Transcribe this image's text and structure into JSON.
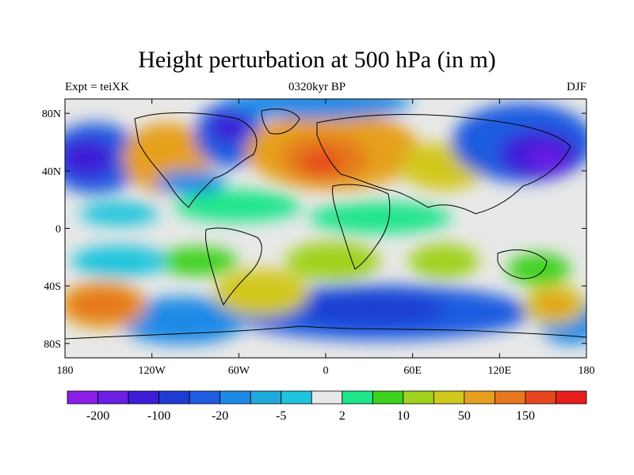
{
  "title": "Height perturbation at 500 hPa (in m)",
  "left_string": "Expt = teiXK",
  "center_string": "0320kyr BP",
  "right_string": "DJF",
  "map": {
    "lon_range": [
      -180,
      180
    ],
    "lat_range": [
      -90,
      90
    ],
    "projection": "cylindrical-equidistant",
    "x_ticks": [
      "180",
      "120W",
      "60W",
      "0",
      "60E",
      "120E",
      "180"
    ],
    "y_ticks": [
      "80N",
      "40N",
      "0",
      "40S",
      "80S"
    ]
  },
  "colorbar": {
    "colors": [
      "#8a1ee6",
      "#6b1ee6",
      "#3d1ed6",
      "#1e3cd2",
      "#1e5ce0",
      "#1e8ae6",
      "#1eaadc",
      "#1ec4dc",
      "#e8e8e8",
      "#1ee68a",
      "#3cd21e",
      "#a0d21e",
      "#d2c81e",
      "#e6a01e",
      "#e6781e",
      "#e6461e",
      "#e61e1e"
    ],
    "labels": [
      "-200",
      "-100",
      "-20",
      "-5",
      "2",
      "10",
      "50",
      "150"
    ]
  }
}
